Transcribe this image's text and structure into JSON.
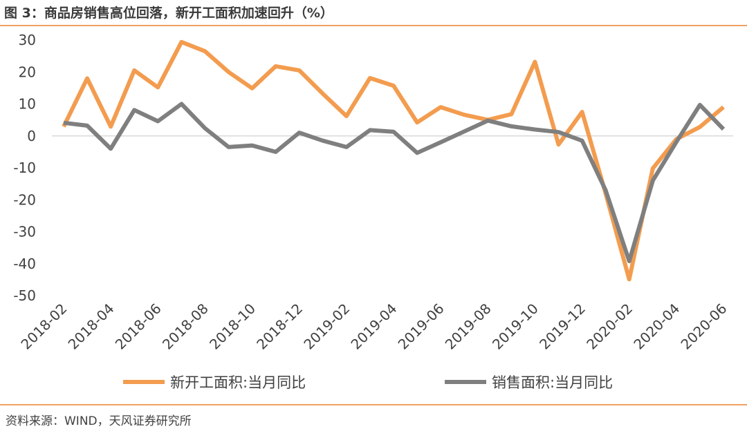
{
  "figure": {
    "title": "图 3：商品房销售高位回落，新开工面积加速回升（%）",
    "source": "资料来源：WIND，天风证券研究所"
  },
  "colors": {
    "series_new_starts": "#f39c4f",
    "series_sales": "#7f7f7f",
    "axis": "#d9d9d9",
    "rule": "#f0a060"
  },
  "chart_data": {
    "type": "line",
    "title": "",
    "xlabel": "",
    "ylabel": "",
    "ylim": [
      -50,
      30
    ],
    "yticks": [
      30,
      20,
      10,
      0,
      -10,
      -20,
      -30,
      -40,
      -50
    ],
    "grid": false,
    "legend": "bottom",
    "categories": [
      "2018-02",
      "2018-03",
      "2018-04",
      "2018-05",
      "2018-06",
      "2018-07",
      "2018-08",
      "2018-09",
      "2018-10",
      "2018-11",
      "2018-12",
      "2019-01",
      "2019-02",
      "2019-03",
      "2019-04",
      "2019-05",
      "2019-06",
      "2019-07",
      "2019-08",
      "2019-09",
      "2019-10",
      "2019-11",
      "2019-12",
      "2020-01",
      "2020-02",
      "2020-03",
      "2020-04",
      "2020-05",
      "2020-06"
    ],
    "xticks": [
      "2018-02",
      "2018-04",
      "2018-06",
      "2018-08",
      "2018-10",
      "2018-12",
      "2019-02",
      "2019-04",
      "2019-06",
      "2019-08",
      "2019-10",
      "2019-12",
      "2020-02",
      "2020-04",
      "2020-06"
    ],
    "series": [
      {
        "name": "新开工面积:当月同比",
        "values": [
          2.9,
          18.0,
          2.9,
          20.5,
          15.2,
          29.4,
          26.5,
          20.0,
          14.9,
          21.8,
          20.5,
          13.2,
          6.2,
          18.1,
          15.7,
          4.2,
          9.0,
          6.6,
          5.0,
          6.8,
          23.2,
          -2.7,
          7.5,
          -18.0,
          -44.9,
          -10.2,
          -1.0,
          2.8,
          9.0
        ]
      },
      {
        "name": "销售面积:当月同比",
        "values": [
          4.1,
          3.2,
          -4.0,
          8.1,
          4.6,
          10.0,
          2.4,
          -3.5,
          -3.0,
          -5.0,
          1.0,
          -1.5,
          -3.5,
          1.8,
          1.3,
          -5.3,
          -2.0,
          1.4,
          4.8,
          3.0,
          2.0,
          1.2,
          -1.5,
          -17.0,
          -39.2,
          -14.0,
          -1.9,
          9.7,
          2.1
        ]
      }
    ]
  }
}
